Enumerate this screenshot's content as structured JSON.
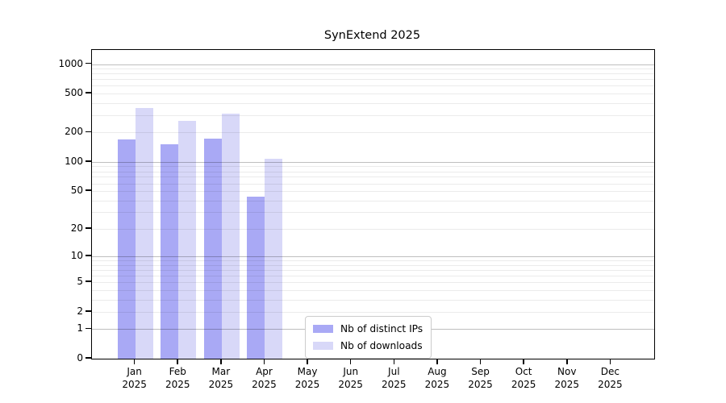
{
  "chart_data": {
    "type": "bar",
    "title": "SynExtend 2025",
    "categories": [
      "Jan",
      "Feb",
      "Mar",
      "Apr",
      "May",
      "Jun",
      "Jul",
      "Aug",
      "Sep",
      "Oct",
      "Nov",
      "Dec"
    ],
    "x_year_line": "2025",
    "series": [
      {
        "name": "Nb of distinct IPs",
        "color": "#a9a9f5",
        "values": [
          170,
          153,
          172,
          44,
          null,
          null,
          null,
          null,
          null,
          null,
          null,
          null
        ]
      },
      {
        "name": "Nb of downloads",
        "color": "#d8d8f8",
        "values": [
          358,
          265,
          310,
          108,
          null,
          null,
          null,
          null,
          null,
          null,
          null,
          null
        ]
      }
    ],
    "y_ticks": [
      0,
      1,
      2,
      5,
      10,
      20,
      50,
      100,
      200,
      500,
      1000
    ],
    "scale": "log1p",
    "ylim": [
      0,
      1400
    ],
    "xlabel": "",
    "ylabel": "",
    "grid": "horizontal log-decade gridlines, majors at 1/10/100/1000",
    "legend_position": "bottom-center",
    "colors": {
      "axis": "#000000",
      "major_grid": "#bfbfbf",
      "minor_grid": "#ebebeb",
      "background": "#ffffff"
    }
  }
}
